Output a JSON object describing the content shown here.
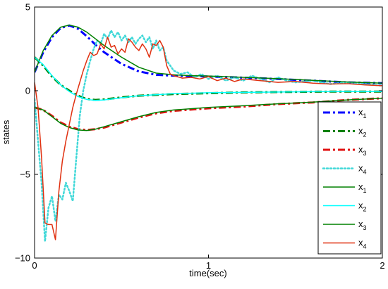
{
  "chart_data": {
    "type": "line",
    "title": "",
    "xlabel": "time(sec)",
    "ylabel": "states",
    "xlim": [
      0,
      2
    ],
    "ylim": [
      -10,
      5
    ],
    "xticks": [
      0,
      1,
      2
    ],
    "yticks": [
      -10,
      -5,
      0,
      5
    ],
    "grid": false,
    "legend_position": "lower-right",
    "series": [
      {
        "name": "x",
        "sub": "1",
        "color": "#0000ff",
        "style": "dashdot",
        "width": 3,
        "x": [
          0,
          0.05,
          0.1,
          0.15,
          0.2,
          0.25,
          0.3,
          0.35,
          0.4,
          0.5,
          0.6,
          0.7,
          0.8,
          0.9,
          1.0,
          1.2,
          1.4,
          1.6,
          1.8,
          2.0
        ],
        "y": [
          1.1,
          2.3,
          3.2,
          3.75,
          3.9,
          3.7,
          3.25,
          2.75,
          2.3,
          1.6,
          1.15,
          0.95,
          0.9,
          0.88,
          0.85,
          0.78,
          0.7,
          0.6,
          0.5,
          0.45
        ]
      },
      {
        "name": "x",
        "sub": "2",
        "color": "#008000",
        "style": "dashdot",
        "width": 3,
        "x": [
          0,
          0.05,
          0.1,
          0.15,
          0.2,
          0.25,
          0.3,
          0.35,
          0.4,
          0.5,
          0.6,
          0.8,
          1.0,
          1.2,
          1.4,
          1.6,
          1.8,
          2.0
        ],
        "y": [
          2.0,
          1.5,
          0.85,
          0.35,
          0.0,
          -0.3,
          -0.5,
          -0.55,
          -0.52,
          -0.4,
          -0.3,
          -0.2,
          -0.15,
          -0.1,
          -0.08,
          -0.06,
          -0.05,
          -0.05
        ]
      },
      {
        "name": "x",
        "sub": "3",
        "color": "#e01010",
        "style": "dashdot",
        "width": 3,
        "x": [
          0,
          0.05,
          0.1,
          0.15,
          0.2,
          0.25,
          0.3,
          0.35,
          0.4,
          0.5,
          0.6,
          0.7,
          0.8,
          1.0,
          1.2,
          1.4,
          1.6,
          1.8,
          2.0
        ],
        "y": [
          -1.0,
          -1.15,
          -1.5,
          -1.9,
          -2.15,
          -2.3,
          -2.35,
          -2.3,
          -2.2,
          -1.9,
          -1.6,
          -1.35,
          -1.2,
          -1.05,
          -0.95,
          -0.8,
          -0.7,
          -0.55,
          -0.45
        ]
      },
      {
        "name": "x",
        "sub": "4",
        "color": "#40d8d8",
        "style": "dotted",
        "width": 2.5,
        "x": [
          0,
          0.02,
          0.04,
          0.06,
          0.08,
          0.1,
          0.12,
          0.14,
          0.16,
          0.18,
          0.2,
          0.22,
          0.24,
          0.26,
          0.28,
          0.3,
          0.32,
          0.34,
          0.36,
          0.38,
          0.4,
          0.42,
          0.44,
          0.46,
          0.48,
          0.5,
          0.52,
          0.54,
          0.56,
          0.58,
          0.6,
          0.62,
          0.64,
          0.66,
          0.68,
          0.7,
          0.72,
          0.74,
          0.76,
          0.78,
          0.8,
          0.84,
          0.88,
          0.92,
          0.96,
          1.0,
          1.05,
          1.1,
          1.15,
          1.2,
          1.25,
          1.3,
          1.35,
          1.4,
          1.45,
          1.5,
          1.6,
          1.7,
          1.8,
          1.9,
          2.0
        ],
        "y": [
          -0.5,
          -3.0,
          -5.5,
          -9.0,
          -7.0,
          -6.3,
          -7.8,
          -6.2,
          -6.5,
          -5.5,
          -6.0,
          -6.6,
          -4.0,
          -1.5,
          0.0,
          1.0,
          1.8,
          2.5,
          3.0,
          2.8,
          3.4,
          3.1,
          3.6,
          3.2,
          3.5,
          3.0,
          3.3,
          2.9,
          3.2,
          2.8,
          3.1,
          3.3,
          2.9,
          3.2,
          2.5,
          3.0,
          2.4,
          2.6,
          1.8,
          1.5,
          1.2,
          1.0,
          1.1,
          0.8,
          1.0,
          0.7,
          0.9,
          0.6,
          0.8,
          0.6,
          0.9,
          0.7,
          0.5,
          0.8,
          0.6,
          0.5,
          0.6,
          0.4,
          0.5,
          0.4,
          0.3
        ]
      },
      {
        "name": "x",
        "sub": "1",
        "color": "#008000",
        "style": "solid",
        "width": 1.5,
        "x": [
          0,
          0.05,
          0.1,
          0.15,
          0.2,
          0.25,
          0.3,
          0.35,
          0.4,
          0.5,
          0.6,
          0.7,
          0.8,
          0.9,
          1.0,
          1.2,
          1.4,
          1.6,
          1.8,
          2.0
        ],
        "y": [
          1.1,
          2.4,
          3.3,
          3.8,
          3.92,
          3.8,
          3.5,
          3.1,
          2.7,
          2.0,
          1.4,
          1.05,
          0.95,
          0.9,
          0.88,
          0.8,
          0.72,
          0.62,
          0.52,
          0.45
        ]
      },
      {
        "name": "x",
        "sub": "2",
        "color": "#00ffff",
        "style": "solid",
        "width": 1.5,
        "x": [
          0,
          0.05,
          0.1,
          0.15,
          0.2,
          0.25,
          0.3,
          0.35,
          0.4,
          0.5,
          0.6,
          0.8,
          1.0,
          1.2,
          1.4,
          1.6,
          1.8,
          2.0
        ],
        "y": [
          2.0,
          1.55,
          0.9,
          0.35,
          -0.05,
          -0.35,
          -0.52,
          -0.58,
          -0.55,
          -0.42,
          -0.3,
          -0.18,
          -0.12,
          -0.1,
          -0.08,
          -0.06,
          -0.05,
          -0.05
        ]
      },
      {
        "name": "x",
        "sub": "3",
        "color": "#008000",
        "style": "solid",
        "width": 1.5,
        "x": [
          0,
          0.05,
          0.1,
          0.15,
          0.2,
          0.25,
          0.3,
          0.35,
          0.4,
          0.5,
          0.6,
          0.7,
          0.8,
          1.0,
          1.2,
          1.4,
          1.6,
          1.8,
          2.0
        ],
        "y": [
          -1.0,
          -1.15,
          -1.55,
          -1.95,
          -2.2,
          -2.35,
          -2.38,
          -2.3,
          -2.15,
          -1.85,
          -1.55,
          -1.3,
          -1.15,
          -1.0,
          -0.9,
          -0.78,
          -0.68,
          -0.55,
          -0.45
        ]
      },
      {
        "name": "x",
        "sub": "4",
        "color": "#e03010",
        "style": "solid",
        "width": 1.5,
        "x": [
          0,
          0.02,
          0.04,
          0.06,
          0.08,
          0.1,
          0.12,
          0.14,
          0.16,
          0.18,
          0.2,
          0.22,
          0.24,
          0.26,
          0.28,
          0.3,
          0.32,
          0.34,
          0.36,
          0.38,
          0.4,
          0.42,
          0.44,
          0.46,
          0.48,
          0.5,
          0.52,
          0.54,
          0.56,
          0.58,
          0.6,
          0.62,
          0.64,
          0.66,
          0.68,
          0.7,
          0.72,
          0.74,
          0.76,
          0.78,
          0.8,
          0.85,
          0.9,
          0.95,
          1.0,
          1.05,
          1.1,
          1.15,
          1.2,
          1.3,
          1.4,
          1.5,
          1.6,
          1.7,
          1.8,
          1.9,
          2.0
        ],
        "y": [
          0.5,
          -1.0,
          -4.0,
          -7.9,
          -8.0,
          -8.0,
          -8.9,
          -6.0,
          -4.2,
          -3.0,
          -2.0,
          -1.0,
          -0.2,
          0.5,
          1.2,
          1.8,
          2.3,
          2.1,
          2.2,
          2.8,
          2.5,
          3.2,
          2.6,
          2.7,
          2.2,
          2.5,
          2.3,
          3.1,
          2.9,
          2.6,
          2.4,
          2.8,
          2.5,
          2.0,
          2.8,
          2.7,
          3.0,
          2.6,
          1.5,
          1.0,
          0.9,
          0.75,
          0.8,
          0.7,
          0.85,
          0.6,
          0.75,
          0.55,
          0.7,
          0.6,
          0.5,
          0.55,
          0.45,
          0.4,
          0.42,
          0.35,
          0.3
        ]
      }
    ]
  }
}
